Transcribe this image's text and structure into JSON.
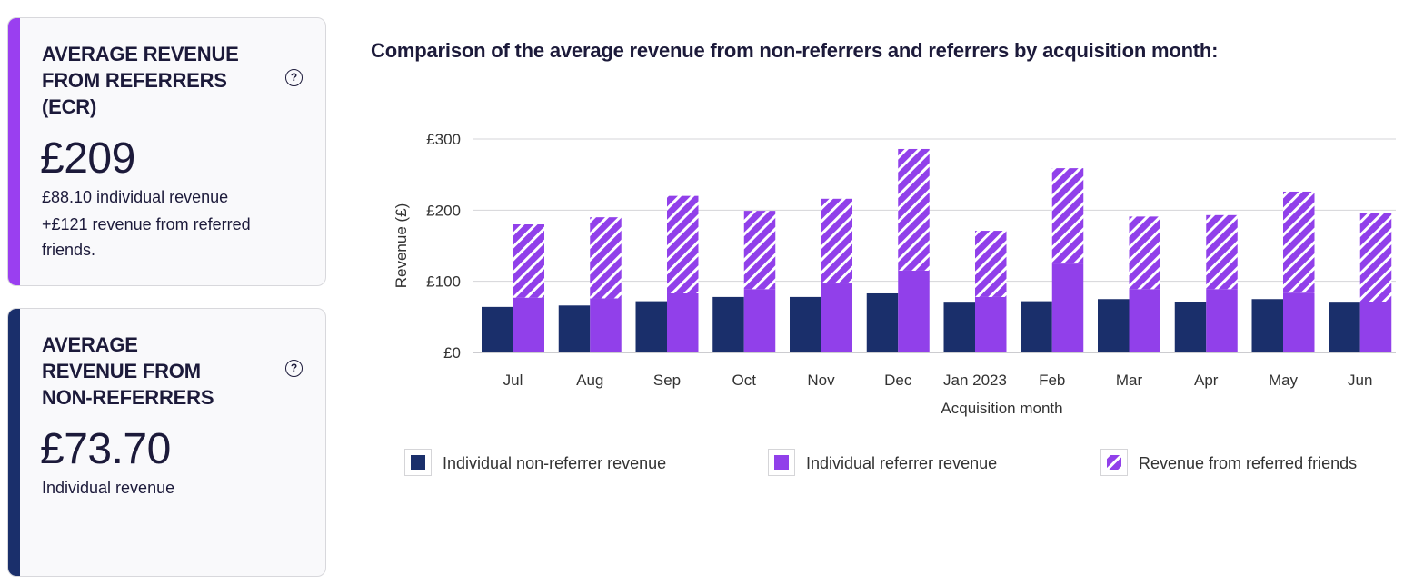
{
  "colors": {
    "non_referrer": "#1a2f6b",
    "referrer": "#9140ea",
    "referrer_accent": "#9a3ff0",
    "non_referrer_accent": "#1a2f6b",
    "grid": "#d4d4d8",
    "text": "#1c1a3a"
  },
  "cards": {
    "referrers": {
      "title": "AVERAGE REVENUE FROM REFERRERS (ECR)",
      "help_icon": "?",
      "value": "£209",
      "desc_line1": "£88.10 individual revenue",
      "desc_line2": "+£121 revenue from referred friends."
    },
    "non_referrers": {
      "title": "AVERAGE REVENUE FROM NON-REFERRERS",
      "help_icon": "?",
      "value": "£73.70",
      "desc": "Individual revenue"
    }
  },
  "chart_title": "Comparison of the average revenue from non-referrers and referrers by acquisition month:",
  "chart_data": {
    "type": "bar",
    "title": "Comparison of the average revenue from non-referrers and referrers by acquisition month:",
    "xlabel": "Acquisition month",
    "ylabel": "Revenue (£)",
    "ylim": [
      0,
      300
    ],
    "yticks": [
      0,
      100,
      200,
      300
    ],
    "ytick_labels": [
      "£0",
      "£100",
      "£200",
      "£300"
    ],
    "grid": true,
    "legend_position": "bottom",
    "categories": [
      "Jul",
      "Aug",
      "Sep",
      "Oct",
      "Nov",
      "Dec",
      "Jan 2023",
      "Feb",
      "Mar",
      "Apr",
      "May",
      "Jun"
    ],
    "series": [
      {
        "name": "Individual non-referrer revenue",
        "stack": "non-referrer",
        "values": [
          64,
          66,
          72,
          78,
          78,
          83,
          70,
          72,
          75,
          71,
          75,
          70
        ]
      },
      {
        "name": "Individual referrer revenue",
        "stack": "referrer",
        "values": [
          77,
          76,
          83,
          89,
          97,
          115,
          78,
          125,
          89,
          89,
          84,
          71
        ]
      },
      {
        "name": "Revenue from referred friends",
        "stack": "referrer",
        "values": [
          103,
          114,
          137,
          110,
          119,
          171,
          93,
          134,
          102,
          104,
          142,
          125
        ]
      }
    ]
  },
  "legend": [
    {
      "label": "Individual non-referrer revenue",
      "icon": "solid-navy-square"
    },
    {
      "label": "Individual referrer revenue",
      "icon": "solid-purple-square"
    },
    {
      "label": "Revenue from referred friends",
      "icon": "hatched-purple-square"
    }
  ]
}
